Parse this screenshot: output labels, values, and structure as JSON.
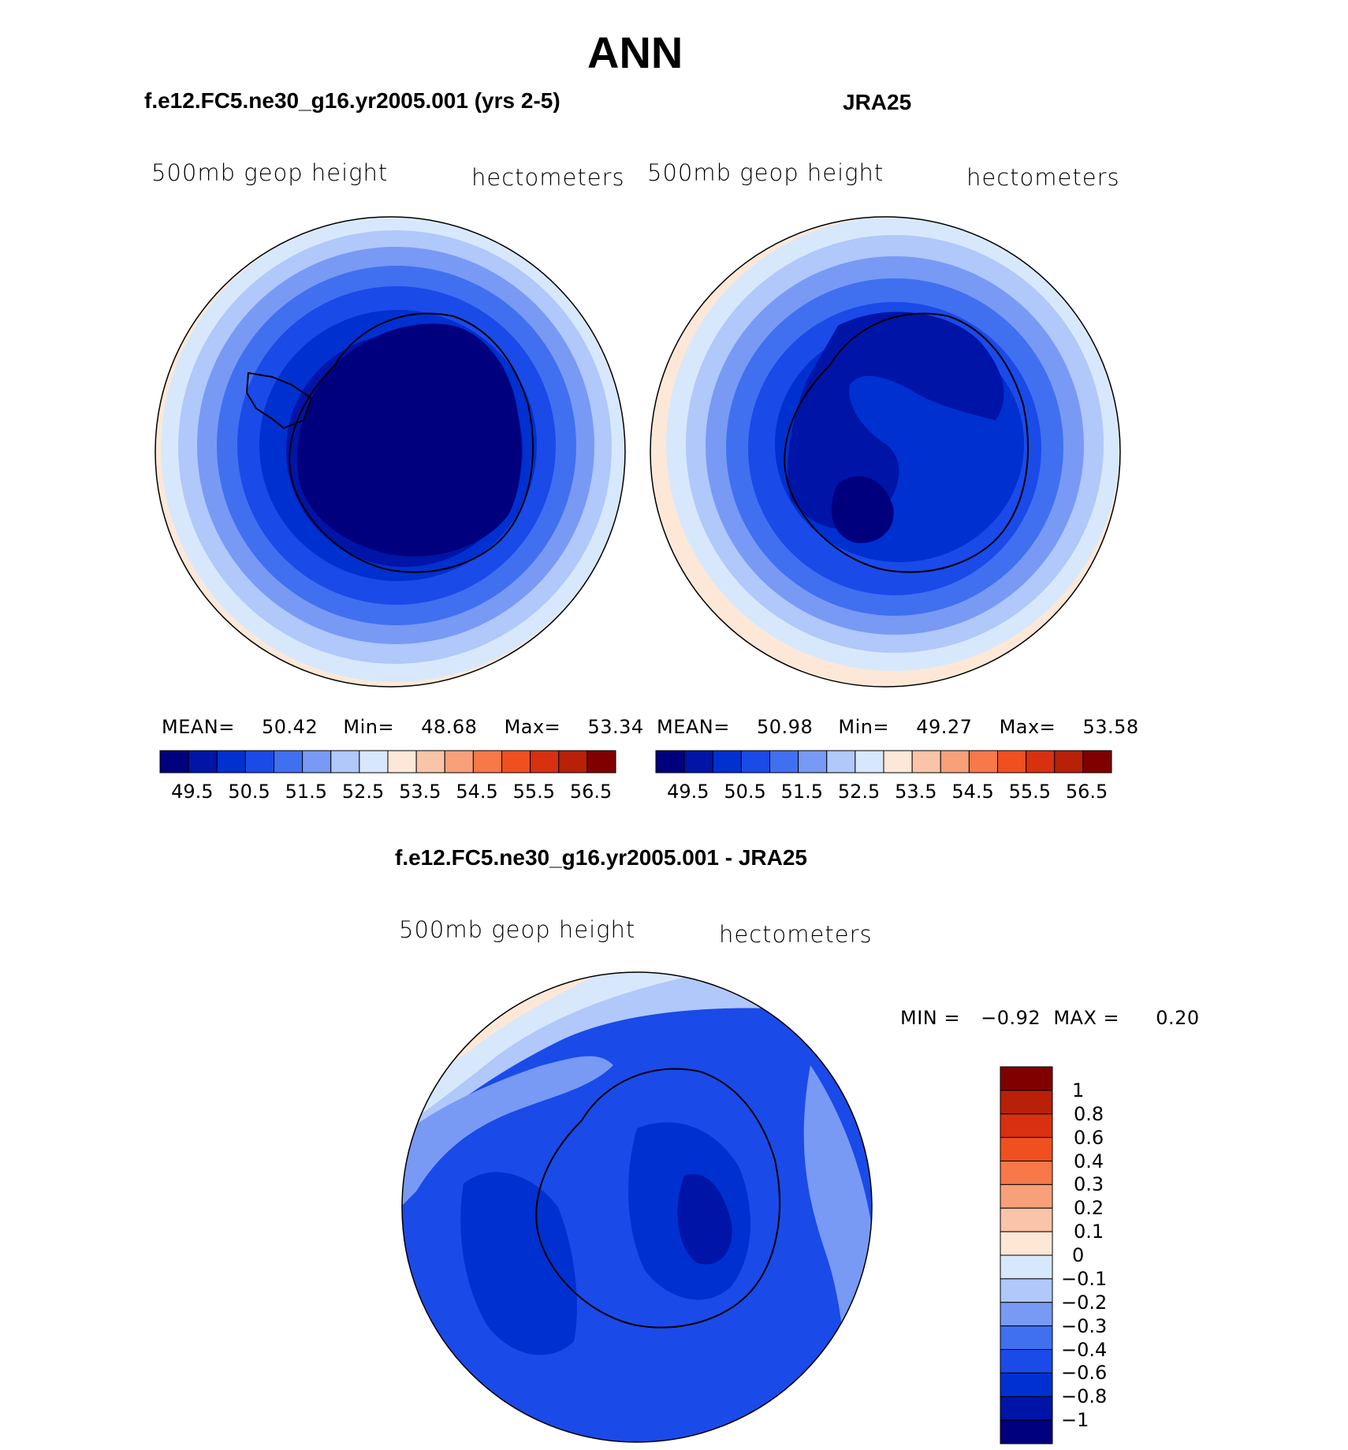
{
  "figure": {
    "title": "ANN",
    "colors": {
      "scale": [
        "#00007f",
        "#0014a8",
        "#0030d0",
        "#1a4ae8",
        "#4070f0",
        "#789af5",
        "#b0c8fa",
        "#d8e8fc",
        "#fde8d8",
        "#f9c4a8",
        "#f7a07a",
        "#f77848",
        "#f05020",
        "#d83010",
        "#b82008",
        "#800000"
      ]
    },
    "panels": [
      {
        "id": "model",
        "heading": "f.e12.FC5.ne30_g16.yr2005.001 (yrs 2-5)",
        "variable": "500mb geop height",
        "units": "hectometers",
        "stats": {
          "mean_label": "MEAN=",
          "mean": "50.42",
          "min_label": "Min=",
          "min": "48.68",
          "max_label": "Max=",
          "max": "53.34"
        },
        "ticks": [
          "49.5",
          "50.5",
          "51.5",
          "52.5",
          "53.5",
          "54.5",
          "55.5",
          "56.5"
        ]
      },
      {
        "id": "obs",
        "heading": "JRA25",
        "variable": "500mb geop height",
        "units": "hectometers",
        "stats": {
          "mean_label": "MEAN=",
          "mean": "50.98",
          "min_label": "Min=",
          "min": "49.27",
          "max_label": "Max=",
          "max": "53.58"
        },
        "ticks": [
          "49.5",
          "50.5",
          "51.5",
          "52.5",
          "53.5",
          "54.5",
          "55.5",
          "56.5"
        ]
      }
    ],
    "diff": {
      "heading": "f.e12.FC5.ne30_g16.yr2005.001 - JRA25",
      "variable": "500mb geop height",
      "units": "hectometers",
      "min_label": "MIN =",
      "min": "−0.92",
      "max_label": "MAX =",
      "max": "0.20",
      "ticks": [
        "1",
        "0.8",
        "0.6",
        "0.4",
        "0.3",
        "0.2",
        "0.1",
        "0",
        "−0.1",
        "−0.2",
        "−0.3",
        "−0.4",
        "−0.6",
        "−0.8",
        "−1"
      ],
      "colors": [
        "#800000",
        "#b82008",
        "#d83010",
        "#f05020",
        "#f77848",
        "#f7a07a",
        "#f9c4a8",
        "#fde8d8",
        "#d8e8fc",
        "#b0c8fa",
        "#789af5",
        "#4070f0",
        "#1a4ae8",
        "#0030d0",
        "#0014a8",
        "#00007f"
      ]
    }
  }
}
